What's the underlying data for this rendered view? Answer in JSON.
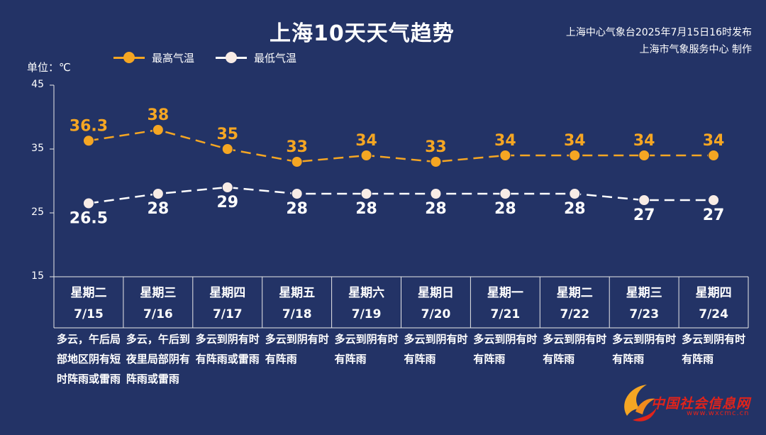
{
  "header": {
    "title": "上海10天天气趋势",
    "publisher_line1": "上海中心气象台2025年7月15日16时发布",
    "publisher_line2": "上海市气象服务中心 制作",
    "unit_label": "单位：℃"
  },
  "watermark": {
    "name": "中国社会信息网",
    "url": "www.wxcmc.cn"
  },
  "days": [
    {
      "weekday": "星期二",
      "date": "7/15",
      "weather": "多云，午后局部地区阴有短时阵雨或雷雨"
    },
    {
      "weekday": "星期三",
      "date": "7/16",
      "weather": "多云，午后到夜里局部阴有阵雨或雷雨"
    },
    {
      "weekday": "星期四",
      "date": "7/17",
      "weather": "多云到阴有时有阵雨或雷雨"
    },
    {
      "weekday": "星期五",
      "date": "7/18",
      "weather": "多云到阴有时有阵雨"
    },
    {
      "weekday": "星期六",
      "date": "7/19",
      "weather": "多云到阴有时有阵雨"
    },
    {
      "weekday": "星期日",
      "date": "7/20",
      "weather": "多云到阴有时有阵雨"
    },
    {
      "weekday": "星期一",
      "date": "7/21",
      "weather": "多云到阴有时有阵雨"
    },
    {
      "weekday": "星期二",
      "date": "7/22",
      "weather": "多云到阴有时有阵雨"
    },
    {
      "weekday": "星期三",
      "date": "7/23",
      "weather": "多云到阴有时有阵雨"
    },
    {
      "weekday": "星期四",
      "date": "7/24",
      "weather": "多云到阴有时有阵雨"
    }
  ],
  "chart_data": {
    "type": "line",
    "title": "上海10天天气趋势",
    "ylabel": "单位：℃",
    "ylim": [
      15,
      45
    ],
    "yticks": [
      15,
      25,
      35,
      45
    ],
    "categories": [
      "7/15",
      "7/16",
      "7/17",
      "7/18",
      "7/19",
      "7/20",
      "7/21",
      "7/22",
      "7/23",
      "7/24"
    ],
    "series": [
      {
        "name": "最高气温",
        "color": "#f5a623",
        "values": [
          36.3,
          38,
          35,
          33,
          34,
          33,
          34,
          34,
          34,
          34
        ],
        "line_style": "dashed",
        "label_position": "above"
      },
      {
        "name": "最低气温",
        "color": "#ffffff",
        "values": [
          26.5,
          28,
          29,
          28,
          28,
          28,
          28,
          28,
          27,
          27
        ],
        "line_style": "dashed",
        "label_position": "below"
      }
    ],
    "legend": "top-left",
    "grid": false
  }
}
